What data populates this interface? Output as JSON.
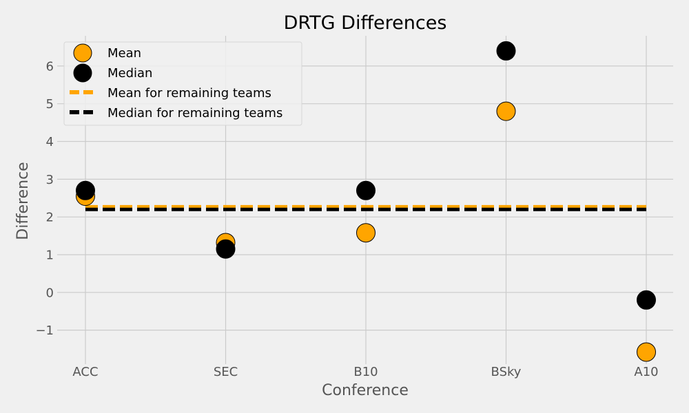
{
  "chart_data": {
    "type": "scatter",
    "title": "DRTG Differences",
    "xlabel": "Conference",
    "ylabel": "Difference",
    "categories": [
      "ACC",
      "SEC",
      "B10",
      "BSky",
      "A10"
    ],
    "ylim": [
      -1.9,
      6.8
    ],
    "yticks": [
      -1,
      0,
      1,
      2,
      3,
      4,
      5,
      6
    ],
    "series": [
      {
        "name": "Mean",
        "color": "#FFA500",
        "values": [
          2.55,
          1.32,
          1.58,
          4.8,
          -1.58
        ]
      },
      {
        "name": "Median",
        "color": "#000000",
        "values": [
          2.7,
          1.15,
          2.7,
          6.4,
          -0.2
        ]
      }
    ],
    "reference_lines": [
      {
        "name": "Mean for remaining teams",
        "color": "#FFA500",
        "value": 2.27,
        "style": "dashed"
      },
      {
        "name": "Median for remaining teams",
        "color": "#000000",
        "value": 2.2,
        "style": "dashed"
      }
    ],
    "grid": true,
    "legend": "top-left"
  }
}
